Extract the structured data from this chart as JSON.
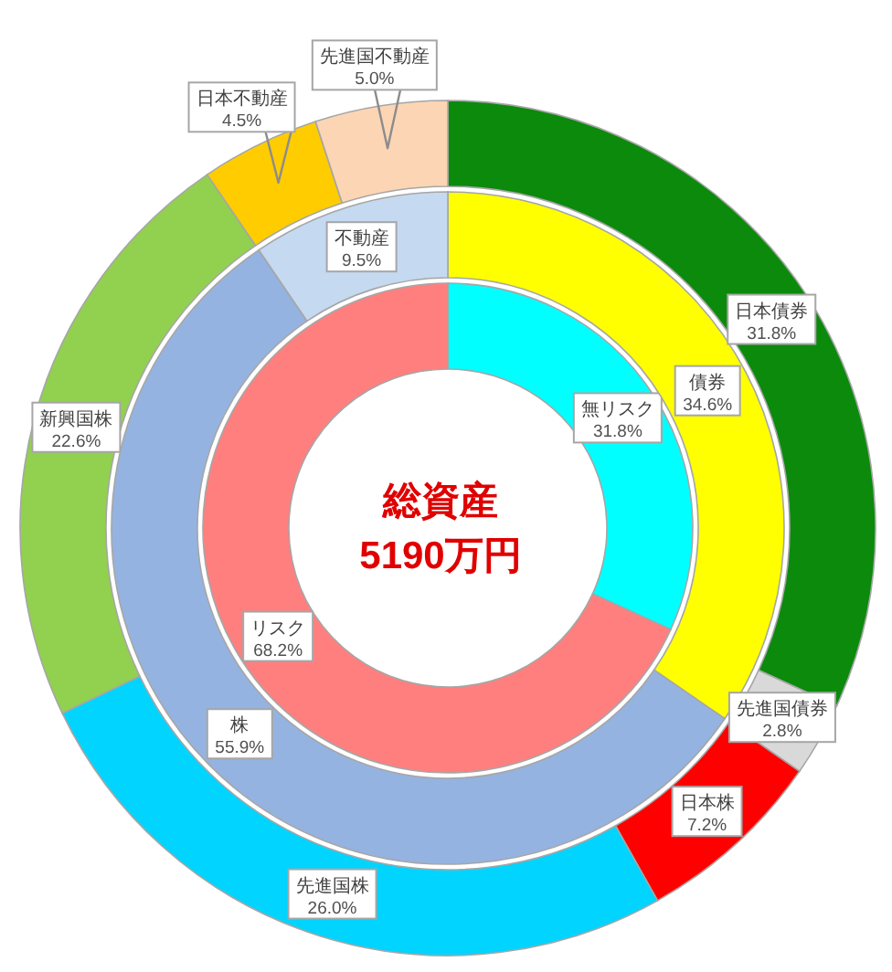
{
  "chart_data": [
    {
      "type": "donut",
      "categories": [
        "無リスク",
        "リスク"
      ],
      "values": [
        31.8,
        68.2
      ],
      "colors": [
        "#00ffff",
        "#ff7f7f"
      ],
      "value_labels": [
        "31.8%",
        "68.2%"
      ],
      "annotations": [
        "総資産",
        "5190万円"
      ]
    },
    {
      "type": "donut",
      "categories": [
        "債券",
        "株",
        "不動産"
      ],
      "values": [
        34.6,
        55.9,
        9.5
      ],
      "colors": [
        "#ffff00",
        "#95b3e0",
        "#c5d9f1"
      ],
      "value_labels": [
        "34.6%",
        "55.9%",
        "9.5%"
      ]
    },
    {
      "type": "donut",
      "categories": [
        "日本債券",
        "先進国債券",
        "日本株",
        "先進国株",
        "新興国株",
        "日本不動産",
        "先進国不動産"
      ],
      "values": [
        31.8,
        2.8,
        7.2,
        26.0,
        22.6,
        4.5,
        5.0
      ],
      "colors": [
        "#0b8a0b",
        "#d9d9d9",
        "#ff0000",
        "#00d4ff",
        "#92d050",
        "#ffcc00",
        "#fcd5b4"
      ],
      "value_labels": [
        "31.8%",
        "2.8%",
        "7.2%",
        "26.0%",
        "22.6%",
        "4.5%",
        "5.0%"
      ]
    }
  ]
}
